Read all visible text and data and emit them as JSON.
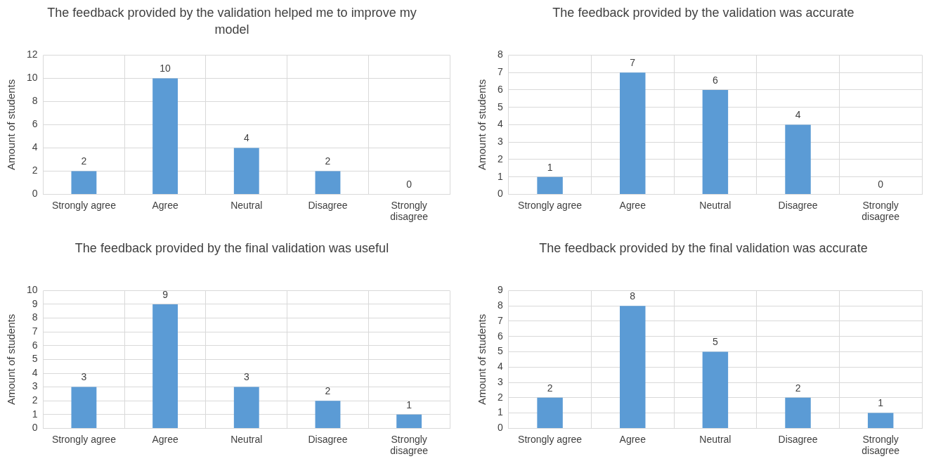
{
  "chart_data": [
    {
      "type": "bar",
      "title": "The feedback provided by the validation helped me to improve my model",
      "ylabel": "Amount of students",
      "categories": [
        "Strongly agree",
        "Agree",
        "Neutral",
        "Disagree",
        "Strongly disagree"
      ],
      "values": [
        2,
        10,
        4,
        2,
        0
      ],
      "color": "#5b9bd5",
      "ylim": [
        0,
        12
      ],
      "yticks": [
        0,
        2,
        4,
        6,
        8,
        10,
        12
      ],
      "grid": true,
      "data_labels": true
    },
    {
      "type": "bar",
      "title": "The feedback provided by the validation was accurate",
      "ylabel": "Amount of students",
      "categories": [
        "Strongly agree",
        "Agree",
        "Neutral",
        "Disagree",
        "Strongly disagree"
      ],
      "values": [
        1,
        7,
        6,
        4,
        0
      ],
      "color": "#5b9bd5",
      "ylim": [
        0,
        8
      ],
      "yticks": [
        0,
        1,
        2,
        3,
        4,
        5,
        6,
        7,
        8
      ],
      "grid": true,
      "data_labels": true
    },
    {
      "type": "bar",
      "title": "The feedback provided by the final validation was useful",
      "ylabel": "Amount of students",
      "categories": [
        "Strongly agree",
        "Agree",
        "Neutral",
        "Disagree",
        "Strongly disagree"
      ],
      "values": [
        3,
        9,
        3,
        2,
        1
      ],
      "color": "#5b9bd5",
      "ylim": [
        0,
        10
      ],
      "yticks": [
        0,
        1,
        2,
        3,
        4,
        5,
        6,
        7,
        8,
        9,
        10
      ],
      "grid": true,
      "data_labels": true
    },
    {
      "type": "bar",
      "title": "The feedback provided by the final validation was accurate",
      "ylabel": "Amount of students",
      "categories": [
        "Strongly agree",
        "Agree",
        "Neutral",
        "Disagree",
        "Strongly disagree"
      ],
      "values": [
        2,
        8,
        5,
        2,
        1
      ],
      "color": "#5b9bd5",
      "ylim": [
        0,
        9
      ],
      "yticks": [
        0,
        1,
        2,
        3,
        4,
        5,
        6,
        7,
        8,
        9
      ],
      "grid": true,
      "data_labels": true
    }
  ]
}
